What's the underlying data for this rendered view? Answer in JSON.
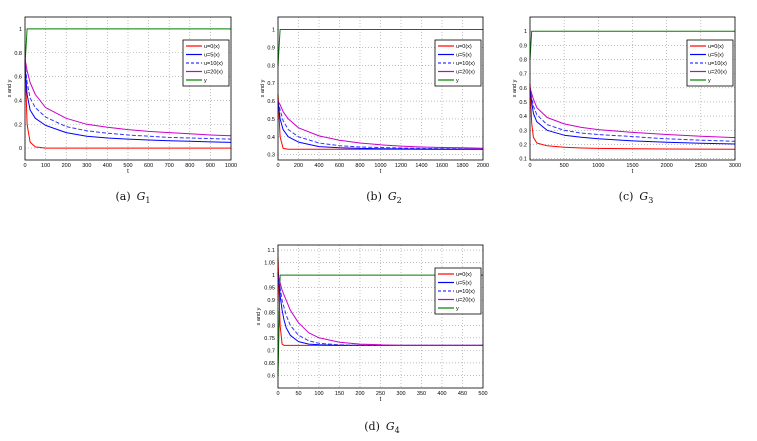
{
  "chart_data": [
    {
      "type": "line",
      "id": "a",
      "caption": {
        "label": "(a)",
        "var": "G",
        "sub": "1"
      },
      "xlabel": "t",
      "ylabel": "x and y",
      "xlim": [
        0,
        1000
      ],
      "ylim": [
        -0.1,
        1.1
      ],
      "xticks": [
        0,
        100,
        200,
        300,
        400,
        500,
        600,
        700,
        800,
        900,
        1000
      ],
      "yticks": [
        0,
        0.2,
        0.4,
        0.6,
        0.8,
        1
      ],
      "grid": true,
      "legend_position": "top-right",
      "x": [
        0,
        10,
        25,
        50,
        100,
        200,
        300,
        400,
        500,
        600,
        700,
        800,
        900,
        1000
      ],
      "series": [
        {
          "name": "u=0(x)",
          "color": "#ff0000",
          "dash": false,
          "values": [
            0.75,
            0.2,
            0.05,
            0.01,
            0,
            0,
            0,
            0,
            0,
            0,
            0,
            0,
            0,
            0
          ]
        },
        {
          "name": "u=5(x)",
          "color": "#0000ff",
          "dash": false,
          "values": [
            0.7,
            0.45,
            0.32,
            0.25,
            0.19,
            0.13,
            0.1,
            0.085,
            0.075,
            0.068,
            0.062,
            0.057,
            0.052,
            0.048
          ]
        },
        {
          "name": "u=10(x)",
          "color": "#3333ff",
          "dash": true,
          "values": [
            0.72,
            0.55,
            0.42,
            0.34,
            0.26,
            0.18,
            0.145,
            0.125,
            0.11,
            0.1,
            0.09,
            0.085,
            0.08,
            0.075
          ]
        },
        {
          "name": "u=20(x)",
          "color": "#cc00cc",
          "dash": false,
          "values": [
            0.75,
            0.65,
            0.55,
            0.45,
            0.34,
            0.25,
            0.2,
            0.175,
            0.155,
            0.14,
            0.13,
            0.12,
            0.11,
            0.103
          ]
        },
        {
          "name": "y",
          "color": "#008000",
          "dash": false,
          "values": [
            0.7,
            1,
            1,
            1,
            1,
            1,
            1,
            1,
            1,
            1,
            1,
            1,
            1,
            1
          ]
        }
      ]
    },
    {
      "type": "line",
      "id": "b",
      "caption": {
        "label": "(b)",
        "var": "G",
        "sub": "2"
      },
      "xlabel": "t",
      "ylabel": "x and y",
      "xlim": [
        0,
        2000
      ],
      "ylim": [
        0.27,
        1.07
      ],
      "xticks": [
        0,
        200,
        400,
        600,
        800,
        1000,
        1200,
        1400,
        1600,
        1800,
        2000
      ],
      "yticks": [
        0.3,
        0.4,
        0.5,
        0.6,
        0.7,
        0.8,
        0.9,
        1
      ],
      "grid": true,
      "legend_position": "top-right",
      "x": [
        0,
        20,
        50,
        100,
        200,
        400,
        600,
        800,
        1000,
        1200,
        1400,
        1600,
        1800,
        2000
      ],
      "series": [
        {
          "name": "u=0(x)",
          "color": "#ff0000",
          "dash": false,
          "values": [
            0.64,
            0.4,
            0.335,
            0.33,
            0.33,
            0.33,
            0.33,
            0.33,
            0.33,
            0.33,
            0.33,
            0.33,
            0.33,
            0.33
          ]
        },
        {
          "name": "u=5(x)",
          "color": "#0000ff",
          "dash": false,
          "values": [
            0.6,
            0.5,
            0.44,
            0.4,
            0.37,
            0.345,
            0.338,
            0.335,
            0.333,
            0.332,
            0.331,
            0.33,
            0.33,
            0.33
          ]
        },
        {
          "name": "u=10(x)",
          "color": "#3333ff",
          "dash": true,
          "values": [
            0.6,
            0.55,
            0.49,
            0.44,
            0.4,
            0.365,
            0.35,
            0.343,
            0.34,
            0.337,
            0.335,
            0.334,
            0.333,
            0.332
          ]
        },
        {
          "name": "u=20(x)",
          "color": "#cc00cc",
          "dash": false,
          "values": [
            0.6,
            0.58,
            0.54,
            0.5,
            0.45,
            0.405,
            0.38,
            0.365,
            0.355,
            0.348,
            0.343,
            0.34,
            0.338,
            0.336
          ]
        },
        {
          "name": "y",
          "color": "#008000",
          "dash": false,
          "values": [
            0.8,
            1,
            1,
            1,
            1,
            1,
            1,
            1,
            1,
            1,
            1,
            1,
            1,
            1
          ]
        }
      ]
    },
    {
      "type": "line",
      "id": "c",
      "caption": {
        "label": "(c)",
        "var": "G",
        "sub": "3"
      },
      "xlabel": "t",
      "ylabel": "x and y",
      "xlim": [
        0,
        3000
      ],
      "ylim": [
        0.09,
        1.1
      ],
      "xticks": [
        0,
        500,
        1000,
        1500,
        2000,
        2500,
        3000
      ],
      "yticks": [
        0.1,
        0.2,
        0.3,
        0.4,
        0.5,
        0.6,
        0.7,
        0.8,
        0.9,
        1
      ],
      "grid": true,
      "legend_position": "top-right",
      "x": [
        0,
        25,
        50,
        100,
        250,
        500,
        750,
        1000,
        1500,
        2000,
        2500,
        3000
      ],
      "series": [
        {
          "name": "u=0(x)",
          "color": "#ff0000",
          "dash": false,
          "values": [
            0.63,
            0.35,
            0.25,
            0.21,
            0.19,
            0.18,
            0.175,
            0.172,
            0.17,
            0.168,
            0.167,
            0.166
          ]
        },
        {
          "name": "u=5(x)",
          "color": "#0000ff",
          "dash": false,
          "values": [
            0.6,
            0.5,
            0.42,
            0.36,
            0.3,
            0.265,
            0.25,
            0.24,
            0.225,
            0.215,
            0.208,
            0.203
          ]
        },
        {
          "name": "u=10(x)",
          "color": "#3333ff",
          "dash": true,
          "values": [
            0.6,
            0.53,
            0.47,
            0.41,
            0.34,
            0.3,
            0.28,
            0.27,
            0.255,
            0.24,
            0.23,
            0.222
          ]
        },
        {
          "name": "u=20(x)",
          "color": "#cc00cc",
          "dash": false,
          "values": [
            0.6,
            0.56,
            0.52,
            0.46,
            0.39,
            0.345,
            0.32,
            0.305,
            0.285,
            0.27,
            0.258,
            0.248
          ]
        },
        {
          "name": "y",
          "color": "#008000",
          "dash": false,
          "values": [
            0.8,
            1,
            1,
            1,
            1,
            1,
            1,
            1,
            1,
            1,
            1,
            1
          ]
        }
      ]
    },
    {
      "type": "line",
      "id": "d",
      "caption": {
        "label": "(d)",
        "var": "G",
        "sub": "4"
      },
      "xlabel": "t",
      "ylabel": "x and y",
      "xlim": [
        0,
        500
      ],
      "ylim": [
        0.55,
        1.12
      ],
      "xticks": [
        0,
        50,
        100,
        150,
        200,
        250,
        300,
        350,
        400,
        450,
        500
      ],
      "yticks": [
        0.6,
        0.65,
        0.7,
        0.75,
        0.8,
        0.85,
        0.9,
        0.95,
        1,
        1.05,
        1.1
      ],
      "grid": true,
      "legend_position": "top-right",
      "x": [
        0,
        5,
        10,
        15,
        20,
        30,
        50,
        75,
        100,
        150,
        200,
        250,
        300,
        400,
        500
      ],
      "series": [
        {
          "name": "u=0(x)",
          "color": "#ff0000",
          "dash": false,
          "values": [
            1.07,
            0.8,
            0.725,
            0.72,
            0.72,
            0.72,
            0.72,
            0.72,
            0.72,
            0.72,
            0.72,
            0.72,
            0.72,
            0.72,
            0.72
          ]
        },
        {
          "name": "u=5(x)",
          "color": "#0000ff",
          "dash": false,
          "values": [
            1.01,
            0.92,
            0.86,
            0.82,
            0.79,
            0.76,
            0.735,
            0.725,
            0.722,
            0.72,
            0.72,
            0.72,
            0.72,
            0.72,
            0.72
          ]
        },
        {
          "name": "u=10(x)",
          "color": "#3333ff",
          "dash": true,
          "values": [
            1.0,
            0.95,
            0.9,
            0.87,
            0.84,
            0.8,
            0.76,
            0.738,
            0.728,
            0.722,
            0.72,
            0.72,
            0.72,
            0.72,
            0.72
          ]
        },
        {
          "name": "u=20(x)",
          "color": "#cc00cc",
          "dash": false,
          "values": [
            1.0,
            0.97,
            0.94,
            0.92,
            0.9,
            0.86,
            0.81,
            0.77,
            0.75,
            0.732,
            0.725,
            0.722,
            0.72,
            0.72,
            0.72
          ]
        },
        {
          "name": "y",
          "color": "#008000",
          "dash": false,
          "values": [
            0.6,
            1,
            1,
            1,
            1,
            1,
            1,
            1,
            1,
            1,
            1,
            1,
            1,
            1,
            1
          ]
        }
      ]
    }
  ]
}
